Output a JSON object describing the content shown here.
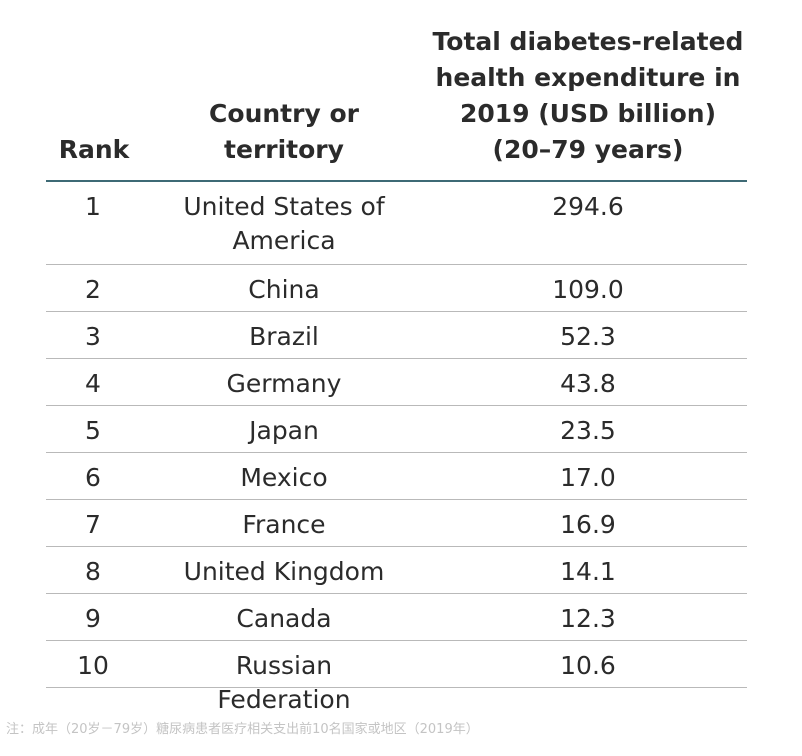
{
  "table": {
    "headers": {
      "rank": "Rank",
      "country": "Country or territory",
      "expenditure": "Total diabetes-related health expenditure in 2019 (USD billion) (20–79 years)"
    },
    "rows": [
      {
        "rank": "1",
        "country": "United States of America",
        "expenditure": "294.6"
      },
      {
        "rank": "2",
        "country": "China",
        "expenditure": "109.0"
      },
      {
        "rank": "3",
        "country": "Brazil",
        "expenditure": "52.3"
      },
      {
        "rank": "4",
        "country": "Germany",
        "expenditure": "43.8"
      },
      {
        "rank": "5",
        "country": "Japan",
        "expenditure": "23.5"
      },
      {
        "rank": "6",
        "country": "Mexico",
        "expenditure": "17.0"
      },
      {
        "rank": "7",
        "country": "France",
        "expenditure": "16.9"
      },
      {
        "rank": "8",
        "country": "United Kingdom",
        "expenditure": "14.1"
      },
      {
        "rank": "9",
        "country": "Canada",
        "expenditure": "12.3"
      },
      {
        "rank": "10",
        "country": "Russian Federation",
        "expenditure": "10.6"
      }
    ]
  },
  "footnote": "注：成年（20岁－79岁）糖尿病患者医疗相关支出前10名国家或地区（2019年）",
  "colors": {
    "header_rule": "#3e6a75",
    "row_rule": "#b9b9b9",
    "text": "#2b2b2b"
  }
}
